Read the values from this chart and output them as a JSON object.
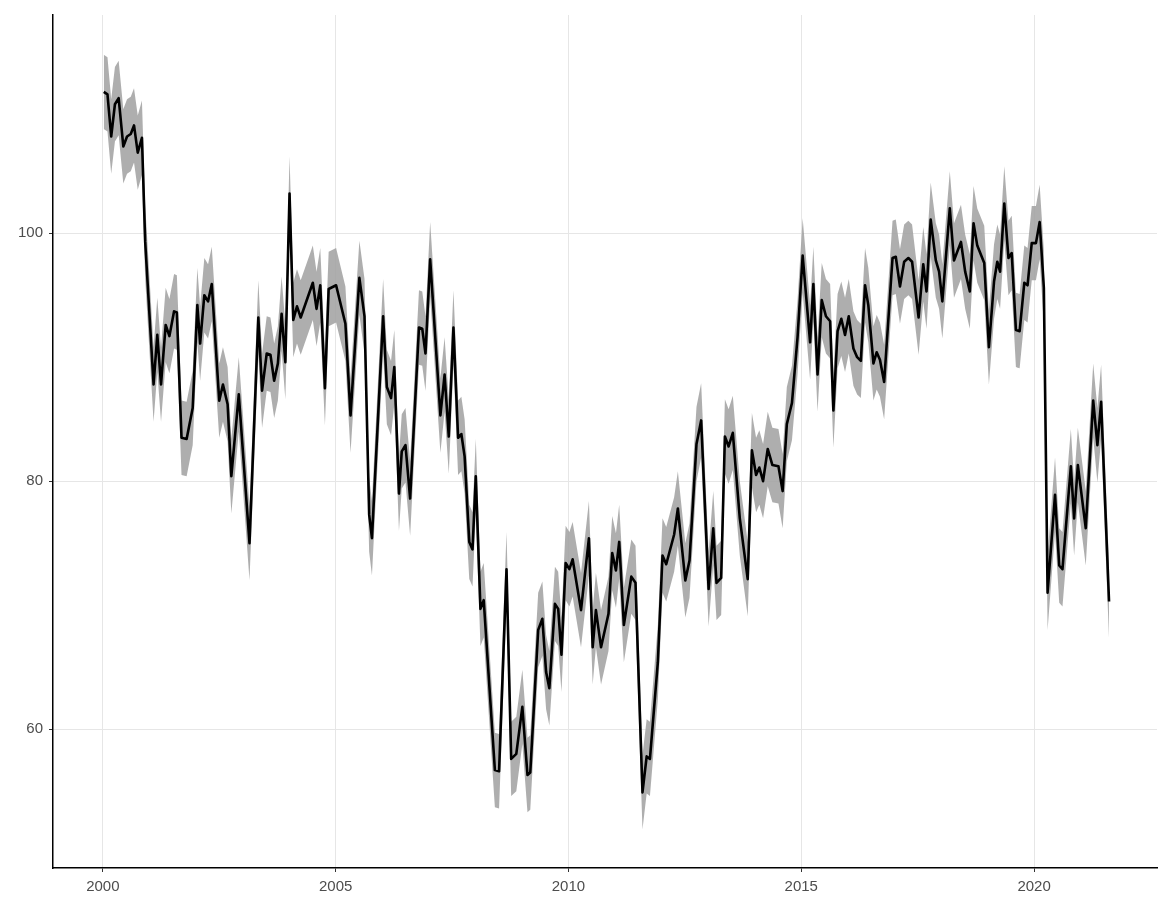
{
  "chart_data": {
    "type": "line",
    "grid": true,
    "xlim": [
      1998.93,
      2022.64
    ],
    "xticks": [
      2000,
      2005,
      2010,
      2015,
      2020
    ],
    "ylim": [
      48.8,
      117.6
    ],
    "yticks": [
      60,
      80,
      100
    ],
    "x": [
      2000.02,
      2000.1,
      2000.18,
      2000.26,
      2000.34,
      2000.44,
      2000.52,
      2000.6,
      2000.67,
      2000.75,
      2000.84,
      2000.91,
      2001.09,
      2001.17,
      2001.25,
      2001.35,
      2001.43,
      2001.53,
      2001.59,
      2001.69,
      2001.8,
      2001.93,
      2002.03,
      2002.09,
      2002.18,
      2002.26,
      2002.34,
      2002.5,
      2002.58,
      2002.68,
      2002.76,
      2002.92,
      2003.15,
      2003.34,
      2003.42,
      2003.52,
      2003.6,
      2003.68,
      2003.76,
      2003.84,
      2003.92,
      2004.01,
      2004.09,
      2004.17,
      2004.25,
      2004.51,
      2004.59,
      2004.67,
      2004.77,
      2004.85,
      2005.01,
      2005.21,
      2005.32,
      2005.51,
      2005.62,
      2005.72,
      2005.78,
      2006.02,
      2006.1,
      2006.19,
      2006.26,
      2006.36,
      2006.42,
      2006.5,
      2006.6,
      2006.79,
      2006.86,
      2006.93,
      2007.03,
      2007.25,
      2007.34,
      2007.43,
      2007.53,
      2007.63,
      2007.7,
      2007.77,
      2007.87,
      2007.94,
      2008.01,
      2008.11,
      2008.18,
      2008.42,
      2008.51,
      2008.67,
      2008.77,
      2008.88,
      2009.01,
      2009.12,
      2009.18,
      2009.35,
      2009.44,
      2009.52,
      2009.59,
      2009.71,
      2009.78,
      2009.85,
      2009.94,
      2010.02,
      2010.09,
      2010.27,
      2010.44,
      2010.52,
      2010.59,
      2010.7,
      2010.86,
      2010.94,
      2011.02,
      2011.09,
      2011.19,
      2011.35,
      2011.44,
      2011.59,
      2011.68,
      2011.75,
      2011.92,
      2012.02,
      2012.1,
      2012.27,
      2012.35,
      2012.51,
      2012.6,
      2012.75,
      2012.85,
      2013.01,
      2013.11,
      2013.18,
      2013.28,
      2013.36,
      2013.44,
      2013.53,
      2013.68,
      2013.85,
      2013.94,
      2014.03,
      2014.1,
      2014.18,
      2014.28,
      2014.38,
      2014.51,
      2014.6,
      2014.69,
      2014.8,
      2014.92,
      2015.03,
      2015.19,
      2015.26,
      2015.35,
      2015.44,
      2015.53,
      2015.62,
      2015.69,
      2015.78,
      2015.86,
      2015.94,
      2016.02,
      2016.12,
      2016.2,
      2016.28,
      2016.37,
      2016.44,
      2016.55,
      2016.62,
      2016.69,
      2016.78,
      2016.96,
      2017.03,
      2017.12,
      2017.21,
      2017.3,
      2017.38,
      2017.52,
      2017.62,
      2017.69,
      2017.78,
      2017.89,
      2017.96,
      2018.03,
      2018.19,
      2018.28,
      2018.43,
      2018.52,
      2018.62,
      2018.7,
      2018.78,
      2018.93,
      2019.03,
      2019.14,
      2019.21,
      2019.27,
      2019.36,
      2019.45,
      2019.52,
      2019.61,
      2019.69,
      2019.79,
      2019.86,
      2019.95,
      2020.04,
      2020.12,
      2020.21,
      2020.29,
      2020.45,
      2020.54,
      2020.61,
      2020.79,
      2020.86,
      2020.94,
      2021.11,
      2021.27,
      2021.36,
      2021.44,
      2021.61
    ],
    "series": [
      {
        "color": "#000000",
        "values": [
          111.4,
          111.2,
          107.8,
          110.4,
          110.9,
          107.0,
          107.8,
          108.0,
          108.7,
          106.5,
          107.7,
          99.3,
          87.8,
          91.8,
          87.8,
          92.6,
          91.7,
          93.7,
          93.6,
          83.5,
          83.4,
          85.9,
          94.2,
          91.1,
          95.0,
          94.5,
          95.9,
          86.5,
          87.8,
          86.2,
          80.4,
          87.0,
          75.0,
          93.2,
          87.3,
          90.3,
          90.2,
          88.1,
          89.5,
          93.5,
          89.6,
          103.2,
          93.0,
          94.1,
          93.2,
          96.0,
          93.9,
          95.8,
          87.5,
          95.5,
          95.8,
          92.7,
          85.3,
          96.4,
          93.3,
          77.3,
          75.4,
          93.3,
          87.6,
          86.7,
          89.2,
          79.0,
          82.4,
          82.9,
          78.6,
          92.4,
          92.3,
          90.3,
          97.9,
          85.3,
          88.6,
          83.6,
          92.4,
          83.5,
          83.8,
          82.0,
          75.1,
          74.5,
          80.4,
          69.7,
          70.4,
          56.7,
          56.6,
          72.9,
          57.6,
          58.0,
          61.8,
          56.3,
          56.5,
          68.0,
          68.9,
          64.6,
          63.3,
          70.1,
          69.7,
          66.0,
          73.4,
          72.9,
          73.7,
          69.6,
          75.4,
          66.6,
          69.6,
          66.6,
          69.3,
          74.2,
          72.8,
          75.1,
          68.4,
          72.3,
          71.8,
          54.9,
          57.8,
          57.6,
          65.4,
          74.0,
          73.3,
          75.7,
          77.8,
          72.0,
          73.6,
          83.0,
          84.9,
          71.3,
          76.2,
          71.8,
          72.2,
          83.6,
          82.8,
          83.9,
          77.0,
          72.1,
          82.5,
          80.5,
          81.1,
          80.0,
          82.6,
          81.3,
          81.2,
          79.2,
          84.6,
          86.3,
          91.6,
          98.2,
          91.2,
          95.9,
          88.6,
          94.6,
          93.3,
          92.9,
          85.7,
          92.1,
          93.1,
          91.8,
          93.3,
          90.7,
          90.0,
          89.7,
          95.8,
          94.2,
          89.5,
          90.4,
          89.8,
          88.0,
          98.0,
          98.1,
          95.7,
          97.7,
          98.0,
          97.7,
          93.2,
          97.5,
          95.3,
          101.1,
          97.8,
          96.9,
          94.5,
          102.0,
          97.8,
          99.3,
          96.9,
          95.3,
          100.8,
          99.0,
          97.6,
          90.8,
          96.1,
          97.7,
          96.9,
          102.4,
          98.0,
          98.4,
          92.2,
          92.1,
          96.0,
          95.8,
          99.2,
          99.2,
          100.9,
          95.6,
          71.0,
          78.9,
          73.2,
          72.9,
          81.2,
          77.0,
          81.3,
          76.2,
          86.5,
          82.9,
          86.4,
          70.3
        ],
        "lower": [
          108.4,
          108.2,
          104.8,
          107.4,
          107.9,
          104.0,
          104.8,
          105.0,
          105.7,
          103.5,
          104.7,
          96.3,
          84.8,
          88.8,
          84.8,
          89.6,
          88.7,
          90.7,
          90.6,
          80.5,
          80.4,
          82.9,
          91.2,
          88.1,
          92.0,
          91.5,
          92.9,
          83.5,
          84.8,
          83.2,
          77.4,
          84.0,
          72.0,
          90.2,
          84.3,
          87.3,
          87.2,
          85.1,
          86.5,
          90.5,
          86.6,
          100.2,
          90.0,
          91.1,
          90.2,
          93.0,
          90.9,
          92.8,
          84.5,
          92.5,
          92.8,
          89.7,
          82.3,
          93.4,
          90.3,
          74.3,
          72.4,
          90.3,
          84.6,
          83.7,
          86.2,
          76.0,
          79.4,
          79.9,
          75.6,
          89.4,
          89.3,
          87.3,
          94.9,
          82.3,
          85.6,
          80.6,
          89.4,
          80.5,
          80.8,
          79.0,
          72.1,
          71.5,
          77.4,
          66.7,
          67.4,
          53.7,
          53.6,
          69.9,
          54.6,
          55.0,
          58.8,
          53.3,
          53.5,
          65.0,
          65.9,
          61.6,
          60.3,
          67.1,
          66.7,
          63.0,
          70.4,
          69.9,
          70.7,
          66.6,
          72.4,
          63.6,
          66.6,
          63.6,
          66.3,
          71.2,
          69.8,
          72.1,
          65.4,
          69.3,
          68.8,
          51.9,
          54.8,
          54.6,
          62.4,
          71.0,
          70.3,
          72.7,
          74.8,
          69.0,
          70.6,
          80.0,
          81.9,
          68.3,
          73.2,
          68.8,
          69.2,
          80.6,
          79.8,
          80.9,
          74.0,
          69.1,
          79.5,
          77.5,
          78.1,
          77.0,
          79.6,
          78.3,
          78.2,
          76.2,
          81.6,
          83.3,
          88.6,
          95.2,
          88.2,
          92.9,
          85.6,
          91.6,
          90.3,
          89.9,
          82.7,
          89.1,
          90.1,
          88.8,
          90.3,
          87.7,
          87.0,
          86.7,
          92.8,
          91.2,
          86.5,
          87.4,
          86.8,
          85.0,
          95.0,
          95.1,
          92.7,
          94.7,
          95.0,
          94.7,
          90.2,
          94.5,
          92.3,
          98.1,
          94.8,
          93.9,
          91.5,
          99.0,
          94.8,
          96.3,
          93.9,
          92.3,
          97.8,
          96.0,
          94.6,
          87.8,
          93.1,
          94.7,
          93.9,
          99.4,
          95.0,
          95.4,
          89.2,
          89.1,
          93.0,
          92.8,
          96.2,
          96.2,
          97.9,
          92.6,
          68.0,
          75.9,
          70.2,
          69.9,
          78.2,
          74.0,
          78.3,
          73.2,
          83.5,
          79.9,
          83.4,
          67.3
        ],
        "upper": [
          114.4,
          114.2,
          110.8,
          113.4,
          113.9,
          110.0,
          110.8,
          111.0,
          111.7,
          109.5,
          110.7,
          102.3,
          90.8,
          94.8,
          90.8,
          95.6,
          94.7,
          96.7,
          96.6,
          86.5,
          86.4,
          88.9,
          97.2,
          94.1,
          98.0,
          97.5,
          98.9,
          89.5,
          90.8,
          89.2,
          83.4,
          90.0,
          78.0,
          96.2,
          90.3,
          93.3,
          93.2,
          91.1,
          92.5,
          96.5,
          92.6,
          106.2,
          96.0,
          97.1,
          96.2,
          99.0,
          96.9,
          98.8,
          90.5,
          98.5,
          98.8,
          95.7,
          88.3,
          99.4,
          96.3,
          80.3,
          78.4,
          96.3,
          90.6,
          89.7,
          92.2,
          82.0,
          85.4,
          85.9,
          81.6,
          95.4,
          95.3,
          93.3,
          100.9,
          88.3,
          91.6,
          86.6,
          95.4,
          86.5,
          86.8,
          85.0,
          78.1,
          77.5,
          83.4,
          72.7,
          73.4,
          59.7,
          59.6,
          75.9,
          60.6,
          61.0,
          64.8,
          59.3,
          59.5,
          71.0,
          71.9,
          67.6,
          66.3,
          73.1,
          72.7,
          69.0,
          76.4,
          75.9,
          76.7,
          72.6,
          78.4,
          69.6,
          72.6,
          69.6,
          72.3,
          77.2,
          75.8,
          78.1,
          71.4,
          75.3,
          74.8,
          57.9,
          60.8,
          60.6,
          68.4,
          77.0,
          76.3,
          78.7,
          80.8,
          75.0,
          76.6,
          86.0,
          87.9,
          74.3,
          79.2,
          74.8,
          75.2,
          86.6,
          85.8,
          86.9,
          80.0,
          75.1,
          85.5,
          83.5,
          84.1,
          83.0,
          85.6,
          84.3,
          84.2,
          82.2,
          87.6,
          89.3,
          94.6,
          101.2,
          94.2,
          98.9,
          91.6,
          97.6,
          96.3,
          95.9,
          88.7,
          95.1,
          96.1,
          94.8,
          96.3,
          93.7,
          93.0,
          92.7,
          98.8,
          97.2,
          92.5,
          93.4,
          92.8,
          91.0,
          101.0,
          101.1,
          98.7,
          100.7,
          101.0,
          100.7,
          96.2,
          100.5,
          98.3,
          104.1,
          100.8,
          99.9,
          97.5,
          105.0,
          100.8,
          102.3,
          99.9,
          98.3,
          103.8,
          102.0,
          100.6,
          93.8,
          99.1,
          100.7,
          99.9,
          105.4,
          101.0,
          101.4,
          95.2,
          95.1,
          99.0,
          98.8,
          102.2,
          102.2,
          103.9,
          98.6,
          74.0,
          81.9,
          76.2,
          75.9,
          84.2,
          80.0,
          84.3,
          79.2,
          89.5,
          85.9,
          89.4,
          73.3
        ]
      }
    ]
  }
}
